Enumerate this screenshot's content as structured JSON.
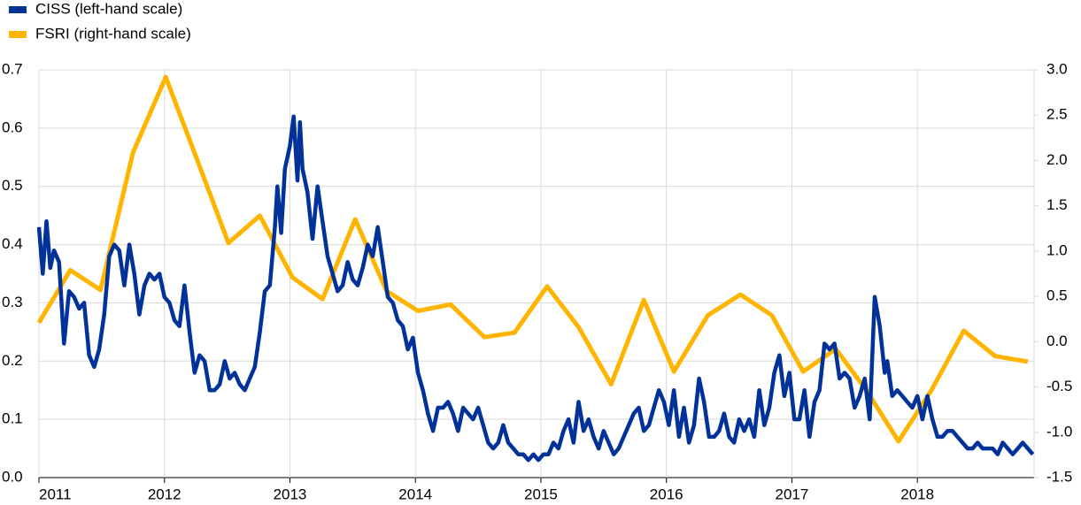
{
  "chart_data": {
    "type": "line",
    "xlim": [
      2011,
      2018.93
    ],
    "xticks": [
      2011,
      2012,
      2013,
      2014,
      2015,
      2016,
      2017,
      2018
    ],
    "ylim": [
      0,
      0.7
    ],
    "yticks": [
      {
        "value": 0,
        "label": "0.0"
      },
      0.1,
      0.2,
      0.3,
      0.4,
      0.5,
      0.6,
      0.7
    ],
    "y2lim": [
      -1.5,
      3.0
    ],
    "y2ticks": [
      {
        "value": -1.5,
        "label": "-1.5"
      },
      {
        "value": -1.0,
        "label": "-1.0"
      },
      -0.5,
      {
        "value": 0,
        "label": "0.0"
      },
      0.5,
      {
        "value": 1.0,
        "label": "1.0"
      },
      1.5,
      {
        "value": 2.0,
        "label": "2.0"
      },
      2.5,
      {
        "value": 3.0,
        "label": "3.0"
      }
    ],
    "grid": true,
    "legend": "top-left",
    "series": [
      {
        "name": "CISS (left-hand scale)",
        "color": "#003299",
        "x": [
          2011.0,
          2011.03,
          2011.06,
          2011.09,
          2011.12,
          2011.16,
          2011.2,
          2011.24,
          2011.28,
          2011.32,
          2011.36,
          2011.4,
          2011.44,
          2011.48,
          2011.52,
          2011.56,
          2011.6,
          2011.64,
          2011.68,
          2011.72,
          2011.76,
          2011.8,
          2011.84,
          2011.88,
          2011.92,
          2011.96,
          2012.0,
          2012.04,
          2012.08,
          2012.12,
          2012.16,
          2012.2,
          2012.24,
          2012.28,
          2012.32,
          2012.36,
          2012.4,
          2012.44,
          2012.48,
          2012.52,
          2012.56,
          2012.6,
          2012.64,
          2012.68,
          2012.72,
          2012.76,
          2012.8,
          2012.84,
          2012.88,
          2012.9,
          2012.93,
          2012.96,
          2013.0,
          2013.03,
          2013.06,
          2013.08,
          2013.1,
          2013.14,
          2013.18,
          2013.22,
          2013.26,
          2013.3,
          2013.34,
          2013.38,
          2013.42,
          2013.46,
          2013.5,
          2013.54,
          2013.58,
          2013.62,
          2013.66,
          2013.7,
          2013.74,
          2013.78,
          2013.82,
          2013.86,
          2013.9,
          2013.94,
          2013.98,
          2014.02,
          2014.06,
          2014.1,
          2014.14,
          2014.18,
          2014.22,
          2014.26,
          2014.3,
          2014.34,
          2014.38,
          2014.42,
          2014.46,
          2014.5,
          2014.54,
          2014.58,
          2014.62,
          2014.66,
          2014.7,
          2014.74,
          2014.78,
          2014.82,
          2014.86,
          2014.9,
          2014.94,
          2014.98,
          2015.02,
          2015.06,
          2015.1,
          2015.14,
          2015.18,
          2015.22,
          2015.26,
          2015.3,
          2015.34,
          2015.38,
          2015.42,
          2015.46,
          2015.5,
          2015.54,
          2015.58,
          2015.62,
          2015.66,
          2015.7,
          2015.74,
          2015.78,
          2015.82,
          2015.86,
          2015.9,
          2015.94,
          2015.98,
          2016.02,
          2016.06,
          2016.1,
          2016.14,
          2016.18,
          2016.22,
          2016.26,
          2016.3,
          2016.34,
          2016.38,
          2016.42,
          2016.46,
          2016.5,
          2016.54,
          2016.58,
          2016.62,
          2016.66,
          2016.7,
          2016.74,
          2016.78,
          2016.82,
          2016.86,
          2016.9,
          2016.94,
          2016.98,
          2017.02,
          2017.06,
          2017.1,
          2017.14,
          2017.18,
          2017.22,
          2017.26,
          2017.3,
          2017.34,
          2017.38,
          2017.42,
          2017.46,
          2017.5,
          2017.54,
          2017.58,
          2017.62,
          2017.66,
          2017.7,
          2017.74,
          2017.76,
          2017.8,
          2017.84,
          2017.88,
          2017.92,
          2017.96,
          2018.0,
          2018.04,
          2018.08,
          2018.12,
          2018.16,
          2018.2,
          2018.24,
          2018.28,
          2018.32,
          2018.36,
          2018.4,
          2018.44,
          2018.48,
          2018.52,
          2018.56,
          2018.6,
          2018.64,
          2018.68,
          2018.72,
          2018.76,
          2018.8,
          2018.84,
          2018.88,
          2018.92
        ],
        "values": [
          0.43,
          0.35,
          0.44,
          0.36,
          0.39,
          0.37,
          0.23,
          0.32,
          0.31,
          0.29,
          0.3,
          0.21,
          0.19,
          0.22,
          0.28,
          0.38,
          0.4,
          0.39,
          0.33,
          0.4,
          0.35,
          0.28,
          0.33,
          0.35,
          0.34,
          0.35,
          0.31,
          0.3,
          0.27,
          0.26,
          0.33,
          0.25,
          0.18,
          0.21,
          0.2,
          0.15,
          0.15,
          0.16,
          0.2,
          0.17,
          0.18,
          0.16,
          0.15,
          0.17,
          0.19,
          0.25,
          0.32,
          0.33,
          0.43,
          0.5,
          0.42,
          0.53,
          0.57,
          0.62,
          0.51,
          0.61,
          0.53,
          0.49,
          0.41,
          0.5,
          0.44,
          0.38,
          0.35,
          0.32,
          0.33,
          0.37,
          0.34,
          0.33,
          0.36,
          0.4,
          0.38,
          0.43,
          0.37,
          0.31,
          0.3,
          0.27,
          0.26,
          0.22,
          0.24,
          0.18,
          0.15,
          0.11,
          0.08,
          0.12,
          0.12,
          0.13,
          0.11,
          0.08,
          0.12,
          0.11,
          0.1,
          0.12,
          0.09,
          0.06,
          0.05,
          0.06,
          0.09,
          0.06,
          0.05,
          0.04,
          0.04,
          0.03,
          0.04,
          0.03,
          0.04,
          0.04,
          0.06,
          0.05,
          0.08,
          0.1,
          0.06,
          0.13,
          0.08,
          0.1,
          0.07,
          0.05,
          0.08,
          0.06,
          0.04,
          0.05,
          0.07,
          0.09,
          0.11,
          0.12,
          0.08,
          0.09,
          0.12,
          0.15,
          0.13,
          0.09,
          0.15,
          0.07,
          0.12,
          0.06,
          0.09,
          0.17,
          0.13,
          0.07,
          0.07,
          0.08,
          0.11,
          0.07,
          0.06,
          0.1,
          0.08,
          0.1,
          0.07,
          0.15,
          0.09,
          0.12,
          0.18,
          0.21,
          0.14,
          0.18,
          0.1,
          0.1,
          0.15,
          0.07,
          0.13,
          0.15,
          0.23,
          0.22,
          0.23,
          0.17,
          0.18,
          0.17,
          0.12,
          0.14,
          0.17,
          0.1,
          0.31,
          0.26,
          0.18,
          0.2,
          0.14,
          0.15,
          0.14,
          0.13,
          0.12,
          0.14,
          0.1,
          0.14,
          0.1,
          0.07,
          0.07,
          0.08,
          0.08,
          0.07,
          0.06,
          0.05,
          0.05,
          0.06,
          0.05,
          0.05,
          0.05,
          0.04,
          0.06,
          0.05,
          0.04,
          0.05,
          0.06,
          0.05,
          0.04
        ]
      },
      {
        "name": "FSRI (right-hand scale)",
        "color": "#ffb400",
        "axis": "y2",
        "x": [
          2011.0,
          2011.25,
          2011.49,
          2011.75,
          2012.01,
          2012.26,
          2012.51,
          2012.76,
          2013.02,
          2013.26,
          2013.52,
          2013.77,
          2014.02,
          2014.28,
          2014.55,
          2014.79,
          2015.05,
          2015.3,
          2015.56,
          2015.82,
          2016.06,
          2016.33,
          2016.59,
          2016.84,
          2017.09,
          2017.35,
          2017.6,
          2017.85,
          2018.11,
          2018.37,
          2018.62,
          2018.88
        ],
        "values": [
          0.21,
          0.79,
          0.57,
          2.09,
          2.92,
          2.01,
          1.09,
          1.39,
          0.71,
          0.47,
          1.35,
          0.56,
          0.34,
          0.41,
          0.05,
          0.1,
          0.61,
          0.16,
          -0.47,
          0.46,
          -0.33,
          0.29,
          0.52,
          0.29,
          -0.33,
          -0.08,
          -0.55,
          -1.1,
          -0.54,
          0.12,
          -0.16,
          -0.22
        ]
      }
    ]
  }
}
